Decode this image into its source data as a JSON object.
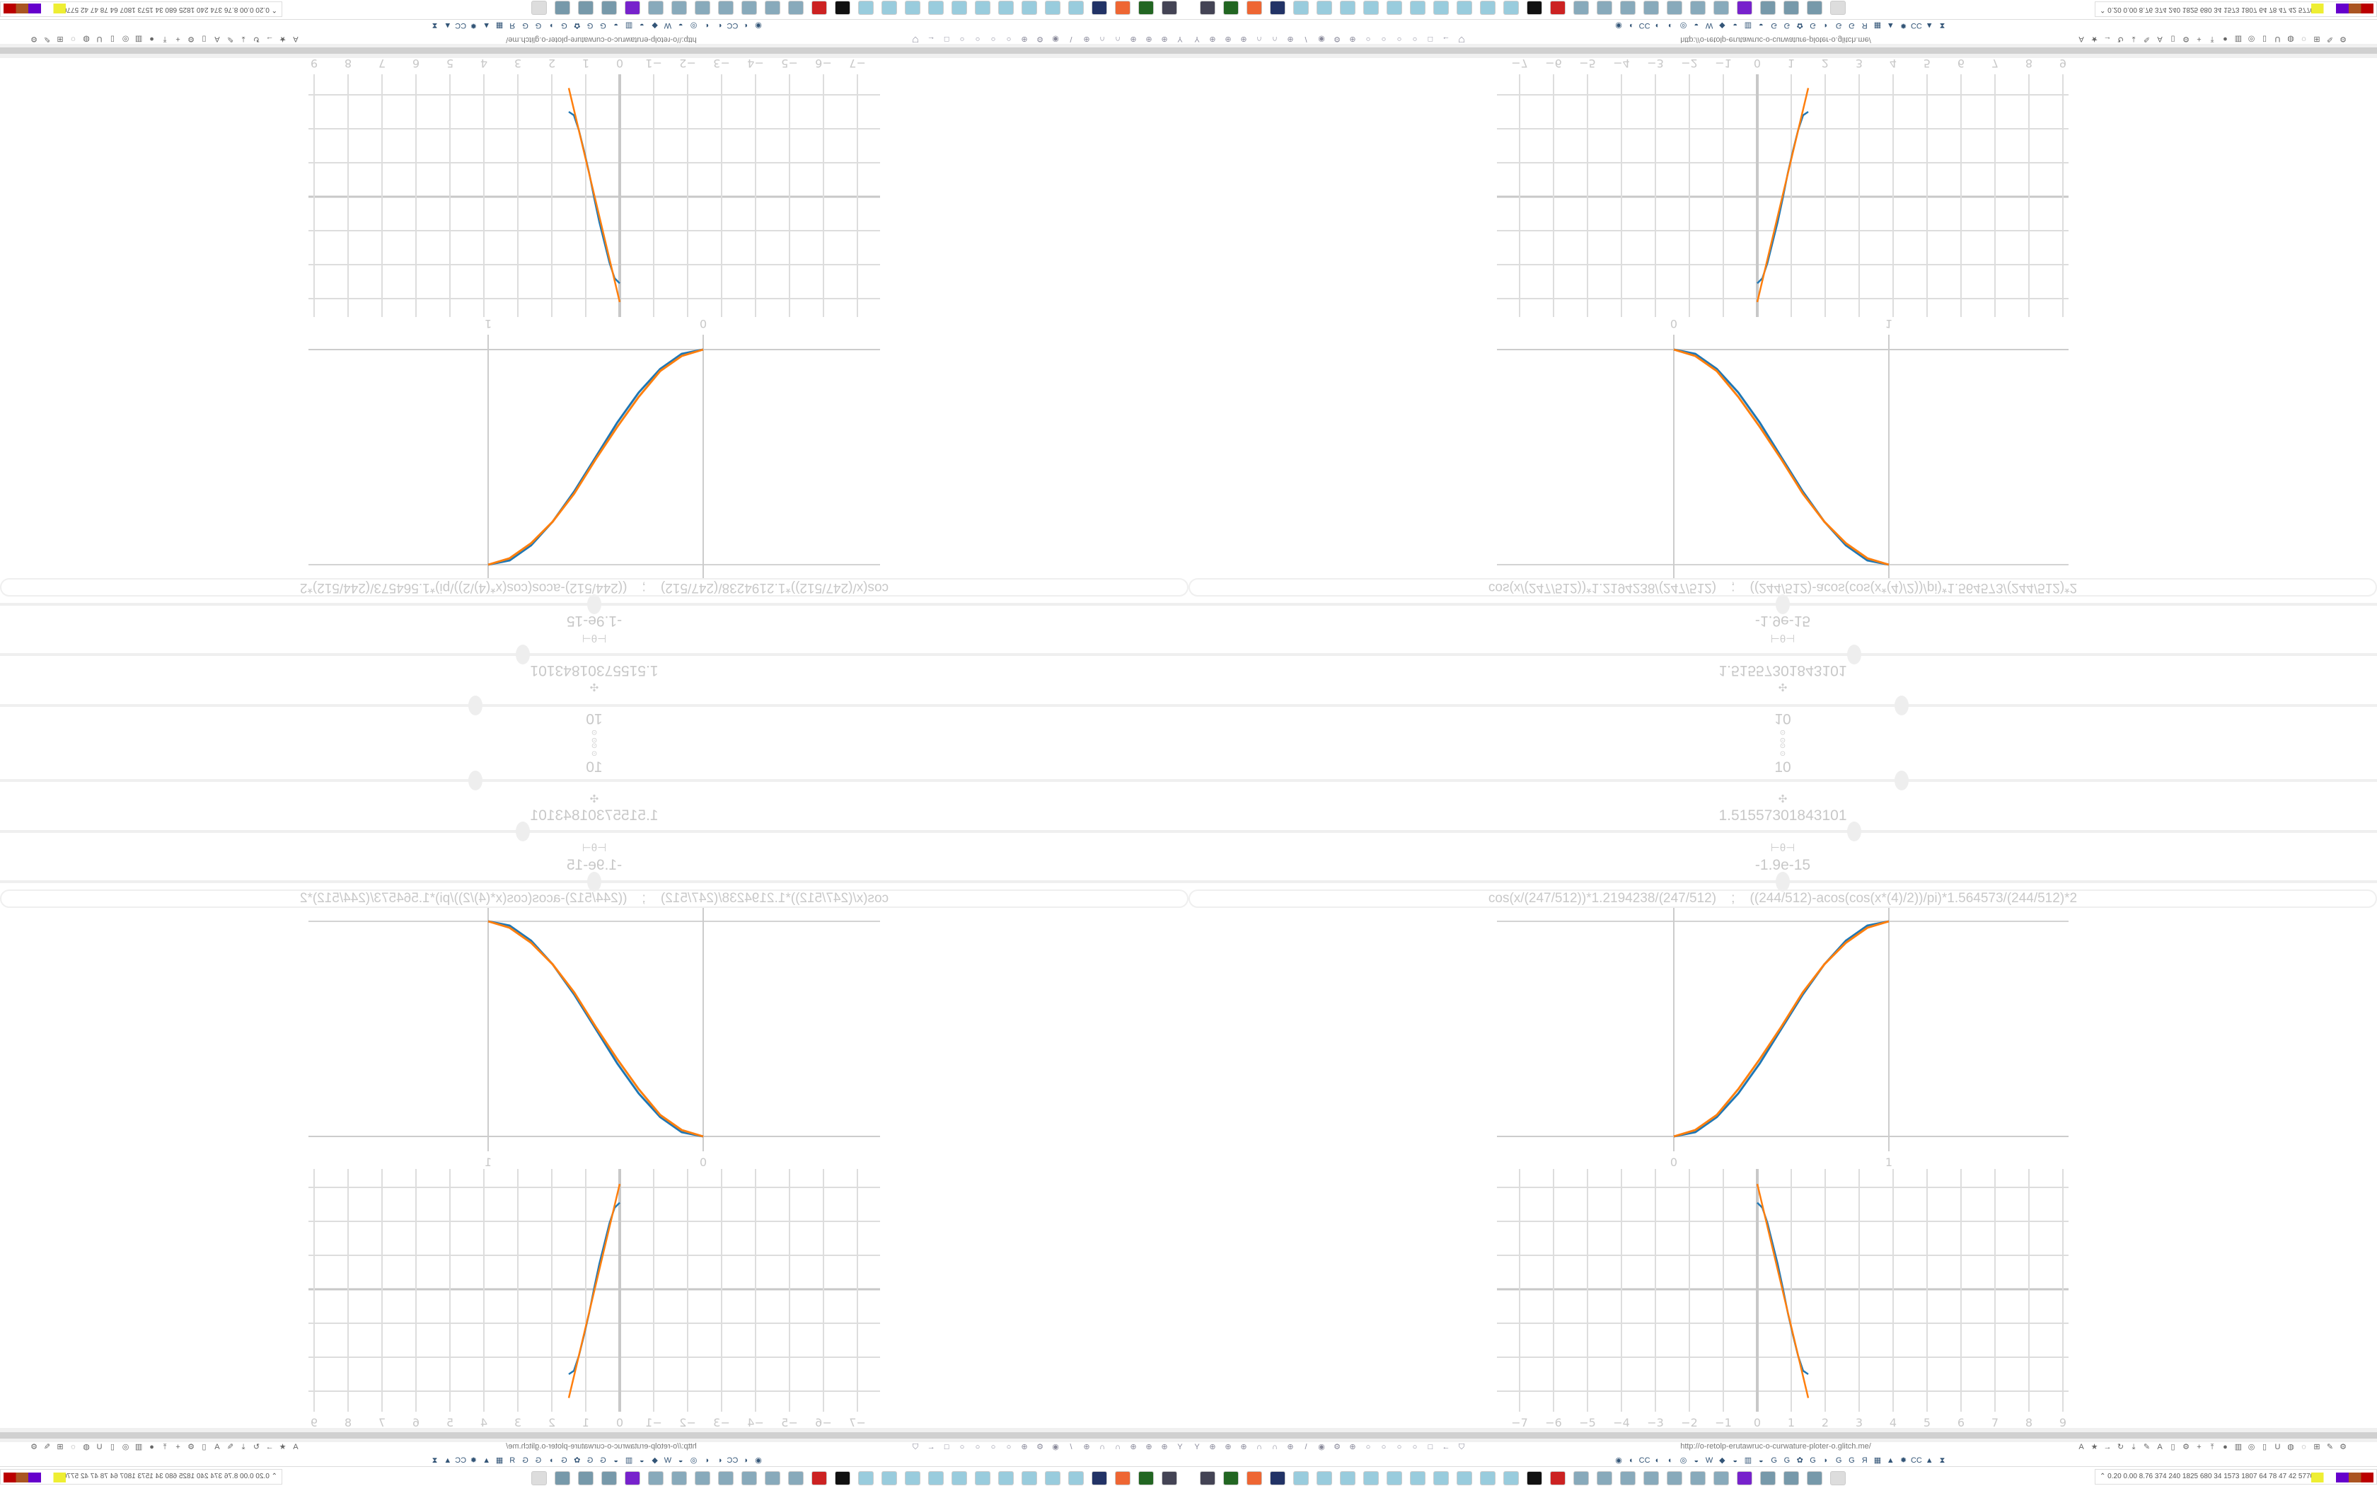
{
  "controls": {
    "top_icons": [
      "⊙",
      "⊙"
    ],
    "sliders": [
      {
        "icon": "gear-icon",
        "glyph": "⊙",
        "value": "10",
        "level": 0.6
      },
      {
        "icon": "clover-icon",
        "glyph": "✣",
        "value": "1.51557301843101",
        "level": 0.56
      },
      {
        "icon": "theta-icon",
        "glyph": "⊢θ⊣",
        "value": "-1.9e-15",
        "level": 0.5
      }
    ]
  },
  "formula": "cos(x/(247/512))*1.2194238/(247/512)    ;    ((244/512)-acos(cos(x*(4)/2))/pi)*1.564573/(244/512)*2",
  "chart_data": [
    {
      "type": "line",
      "x_ticks": [
        "0",
        "1"
      ],
      "xlim": [
        0,
        1
      ],
      "ylim": [
        0,
        1
      ],
      "grid": false,
      "series": [
        {
          "color": "#1f77b4",
          "x": [
            0,
            0.1,
            0.2,
            0.3,
            0.4,
            0.5,
            0.6,
            0.7,
            0.8,
            0.9,
            1
          ],
          "y": [
            0,
            0.02,
            0.09,
            0.2,
            0.34,
            0.5,
            0.66,
            0.8,
            0.91,
            0.98,
            1
          ]
        },
        {
          "color": "#ff7f0e",
          "x": [
            0,
            0.1,
            0.2,
            0.3,
            0.4,
            0.5,
            0.6,
            0.7,
            0.8,
            0.9,
            1
          ],
          "y": [
            0,
            0.03,
            0.1,
            0.22,
            0.36,
            0.51,
            0.67,
            0.8,
            0.9,
            0.97,
            1
          ]
        }
      ]
    },
    {
      "type": "line",
      "x_ticks": [
        "−7",
        "−6",
        "−5",
        "−4",
        "−3",
        "−2",
        "−1",
        "0",
        "1",
        "2",
        "3",
        "4",
        "5",
        "6",
        "7",
        "8",
        "9"
      ],
      "xlim": [
        -7,
        9
      ],
      "ylim": [
        -3,
        3
      ],
      "grid": true,
      "series": [
        {
          "color": "#1f77b4",
          "x": [
            0,
            0.15,
            0.3,
            0.45,
            0.6,
            0.75,
            0.9,
            1.05,
            1.2,
            1.35,
            1.5
          ],
          "y": [
            2.55,
            2.4,
            1.95,
            1.35,
            0.75,
            0.05,
            -0.7,
            -1.35,
            -1.95,
            -2.4,
            -2.5
          ]
        },
        {
          "color": "#ff7f0e",
          "x": [
            0,
            0.25,
            0.5,
            0.75,
            1.0,
            1.25,
            1.5
          ],
          "y": [
            3.1,
            2.05,
            1.0,
            -0.05,
            -1.1,
            -2.15,
            -3.2
          ]
        }
      ]
    }
  ],
  "browser": {
    "url": "http://o-retolp-erutawruc-o-curwature-ploter-o.glitch.me/",
    "toolbar_left_icons": [
      "Y",
      "⊕",
      "⊕",
      "⊕",
      "∩",
      "∩",
      "⊕",
      "/",
      "◉",
      "⚙",
      "⊕",
      "○",
      "○",
      "○",
      "○",
      "□",
      "←",
      "⛉"
    ],
    "toolbar_right_icons": [
      "A",
      "★",
      "→",
      "↻",
      "⤓",
      "✎",
      "A",
      "▯",
      "⚙",
      "+",
      "⤒",
      "●",
      "▥",
      "◎",
      "▯",
      "U",
      "◍",
      "◌",
      "⊞",
      "✎",
      "⚙"
    ],
    "bookmark_icons": [
      "◉",
      "◐",
      "CC",
      "◐",
      "◐",
      "◎",
      "◒",
      "W",
      "◆",
      "◒",
      "▥",
      "◒",
      "G",
      "G",
      "✿",
      "G",
      "◗",
      "G",
      "G",
      "Я",
      "▦",
      "▲",
      "✹",
      "CC",
      "▲",
      "⧗"
    ]
  },
  "taskbar": {
    "icons": [
      "monitor",
      "terminal",
      "firefox",
      "floppy",
      "notepad",
      "notepad",
      "notepad",
      "notepad",
      "notepad",
      "notepad",
      "notepad",
      "notepad",
      "notepad",
      "notepad",
      "inkscape",
      "settings",
      "calc",
      "calc",
      "calc",
      "calc",
      "calc",
      "calc",
      "calc",
      "game",
      "scroll",
      "scroll",
      "scroll",
      "mail"
    ],
    "tray_values": "0.20 0.00 8.76 374  240 1825 680  34  1573 1807 64  78  47  42  5770 7598"
  },
  "colors": {
    "blue": "#1f77b4",
    "orange": "#ff7f0e",
    "grid": "#d3d3d3"
  }
}
